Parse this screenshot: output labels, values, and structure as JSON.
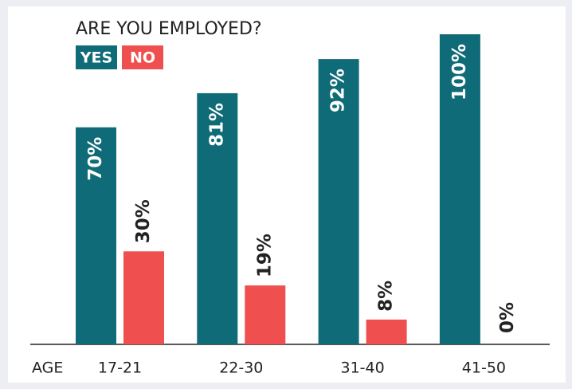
{
  "chart_data": {
    "type": "bar",
    "title": "ARE YOU EMPLOYED?",
    "x_label": "AGE",
    "categories": [
      "17-21",
      "22-30",
      "31-40",
      "41-50"
    ],
    "series": [
      {
        "name": "YES",
        "color": "#0f6b77",
        "values": [
          70,
          81,
          92,
          100
        ],
        "value_labels": [
          "70%",
          "81%",
          "92%",
          "100%"
        ]
      },
      {
        "name": "NO",
        "color": "#ef4f4f",
        "values": [
          30,
          19,
          8,
          0
        ],
        "value_labels": [
          "30%",
          "19%",
          "8%",
          "0%"
        ]
      }
    ]
  }
}
